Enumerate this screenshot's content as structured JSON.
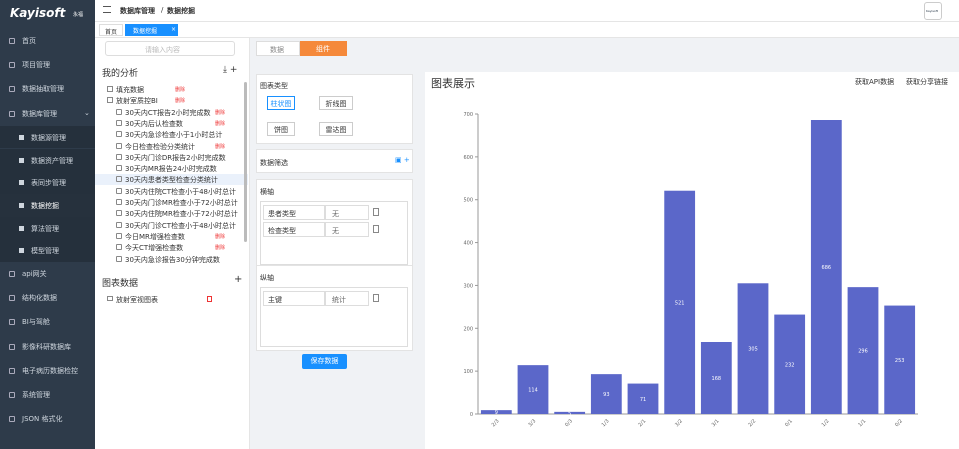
{
  "sidebar": {
    "logo": "Kayisoft",
    "logo_sub": "永福",
    "menu": [
      {
        "label": "首页"
      },
      {
        "label": "项目管理"
      },
      {
        "label": "数据抽取管理"
      },
      {
        "label": "数据库管理",
        "children": [
          {
            "label": "数据源管理"
          },
          {
            "label": "数据资产管理"
          },
          {
            "label": "表同步管理"
          },
          {
            "label": "数据挖掘"
          },
          {
            "label": "算法管理"
          },
          {
            "label": "模型管理"
          }
        ]
      },
      {
        "label": "api网关"
      },
      {
        "label": "结构化数据"
      },
      {
        "label": "BI与驾舱"
      },
      {
        "label": "影像科研数据库"
      },
      {
        "label": "电子病历数据检控"
      },
      {
        "label": "系统管理"
      },
      {
        "label": "JSON 格式化"
      }
    ]
  },
  "topbar": {
    "breadcrumb": [
      "数据库管理",
      "数据挖掘"
    ],
    "avatar": "Kayisoft"
  },
  "tabs": [
    "首页",
    "数据挖掘"
  ],
  "analysis": {
    "search_placeholder": "请输入内容",
    "title": "我的分析",
    "tree": [
      {
        "label": "填充数据",
        "action": "删除"
      },
      {
        "label": "放射室质控BI",
        "action": "删除",
        "children": [
          {
            "label": "30天内CT报告2小时完成数",
            "action": "删除"
          },
          {
            "label": "30天内后认检查数",
            "action": "删除"
          },
          {
            "label": "30天内急诊检查小于1小时总计"
          },
          {
            "label": "今日检查检验分类统计",
            "action": "删除"
          },
          {
            "label": "30天内门诊DR报告2小时完成数"
          },
          {
            "label": "30天内MR报告24小时完成数"
          },
          {
            "label": "30天内患者类型检查分类统计"
          },
          {
            "label": "30天内住院CT检查小于48小时总计"
          },
          {
            "label": "30天内门诊MR检查小于72小时总计"
          },
          {
            "label": "30天内住院MR检查小于72小时总计"
          },
          {
            "label": "30天内门诊CT检查小于48小时总计"
          },
          {
            "label": "今日MR增强检查数",
            "action": "删除"
          },
          {
            "label": "今天CT增强检查数",
            "action": "删除"
          },
          {
            "label": "30天内急诊报告30分钟完成数"
          }
        ]
      }
    ]
  },
  "chart_list": {
    "title": "图表数据",
    "tree": [
      {
        "label": "放射室视图表"
      }
    ]
  },
  "config": {
    "tabs": [
      "数据",
      "组件"
    ],
    "chart_type_title": "图表类型",
    "chart_types": [
      "柱状图",
      "折线图",
      "饼图",
      "雷达图"
    ],
    "filter_title": "数据筛选",
    "x_axis": {
      "title": "横轴",
      "fields": [
        {
          "name": "患者类型",
          "agg": "无"
        },
        {
          "name": "检查类型",
          "agg": "无"
        }
      ]
    },
    "y_axis": {
      "title": "纵轴",
      "fields": [
        {
          "name": "主键",
          "agg": "统计"
        }
      ]
    },
    "save": "保存数据"
  },
  "display": {
    "title": "图表展示",
    "actions": [
      "获取API数据",
      "获取分享链接"
    ]
  },
  "chart_data": {
    "type": "bar",
    "categories": [
      "2/3",
      "3/3",
      "0/3",
      "1/3",
      "2/1",
      "3/2",
      "3/1",
      "2/2",
      "0/1",
      "1/2",
      "1/1",
      "0/2"
    ],
    "values": [
      9,
      114,
      5,
      93,
      71,
      521,
      168,
      305,
      232,
      686,
      296,
      253
    ],
    "color": "#5b67c9",
    "ylim": [
      0,
      700
    ],
    "yticks": [
      0,
      100,
      200,
      300,
      400,
      500,
      600,
      700
    ],
    "grid": false
  }
}
